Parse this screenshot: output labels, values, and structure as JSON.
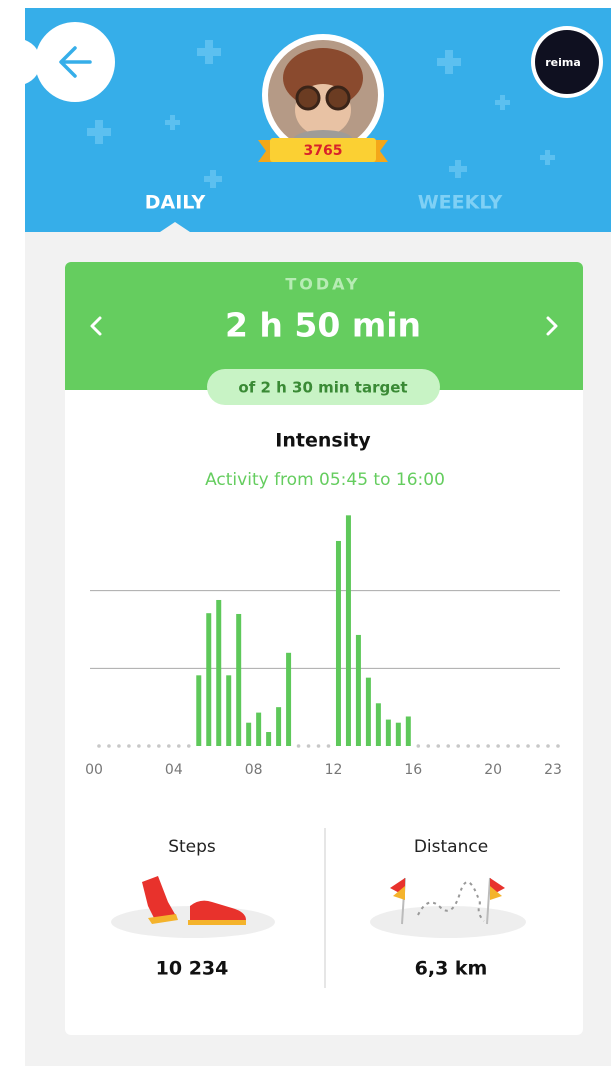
{
  "header": {
    "brand": "reima",
    "score": "3765",
    "tabs": [
      "DAILY",
      "WEEKLY"
    ]
  },
  "summary": {
    "label": "TODAY",
    "duration": "2 h 50 min",
    "target": "of 2 h 30 min target"
  },
  "chart_data": {
    "type": "bar",
    "title": "Intensity",
    "subtitle": "Activity from 05:45 to 16:00",
    "x": [
      0,
      0.5,
      1,
      1.5,
      2,
      2.5,
      3,
      3.5,
      4,
      4.5,
      5,
      5.5,
      6,
      6.5,
      7,
      7.5,
      8,
      8.5,
      9,
      9.5,
      10,
      10.5,
      11,
      11.5,
      12,
      12.5,
      13,
      13.5,
      14,
      14.5,
      15,
      15.5,
      16,
      16.5,
      17,
      17.5,
      18,
      18.5,
      19,
      19.5,
      20,
      20.5,
      21,
      21.5,
      22,
      22.5,
      23
    ],
    "values": [
      0,
      0,
      0,
      0,
      0,
      0,
      0,
      0,
      0,
      0,
      0.91,
      1.71,
      1.88,
      0.91,
      1.7,
      0.3,
      0.43,
      0.18,
      0.5,
      1.2,
      0,
      0,
      0,
      0,
      2.64,
      2.97,
      1.43,
      0.88,
      0.55,
      0.34,
      0.3,
      0.38,
      0,
      0,
      0,
      0,
      0,
      0,
      0,
      0,
      0,
      0,
      0,
      0,
      0,
      0,
      0
    ],
    "color": "#5ec85a",
    "xlim": [
      0,
      23
    ],
    "xticks": [
      {
        "value": 0,
        "label": "00"
      },
      {
        "value": 4,
        "label": "04"
      },
      {
        "value": 8,
        "label": "08"
      },
      12,
      16,
      20,
      23
    ],
    "ylim": [
      0,
      3
    ],
    "yticks": [
      1,
      2
    ],
    "grid": true
  },
  "stats": [
    {
      "label": "Steps",
      "value": "10 234"
    },
    {
      "label": "Distance",
      "value": "6,3 km"
    }
  ]
}
